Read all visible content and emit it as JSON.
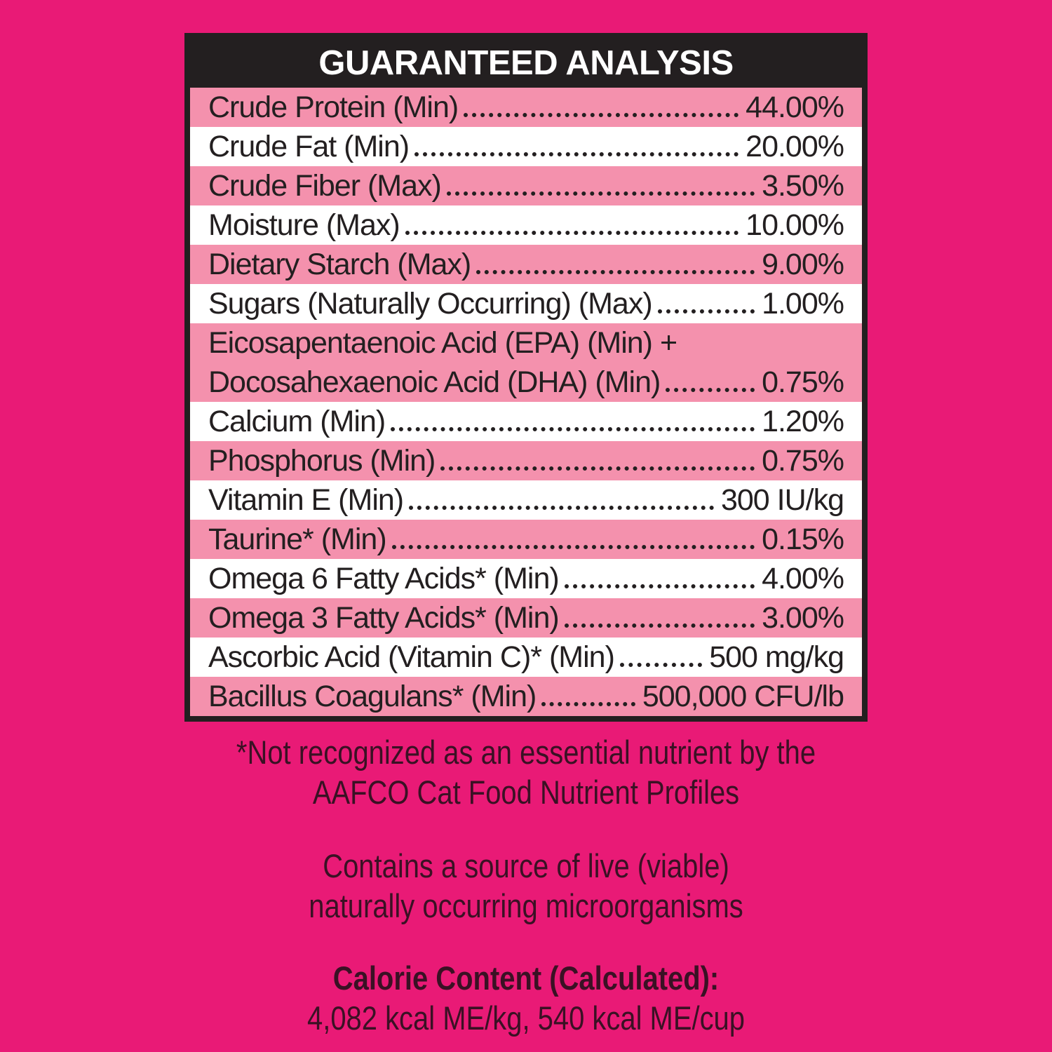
{
  "colors": {
    "background": "#E91A76",
    "table_ink": "#231F20",
    "row_pink": "#F491AD",
    "row_white": "#FFFFFF",
    "header_text": "#FFFFFF",
    "note_text": "#3A1124"
  },
  "table": {
    "title": "GUARANTEED ANALYSIS",
    "rows": [
      {
        "lines": [
          {
            "label": "Crude Protein (Min)",
            "value": "44.00%"
          }
        ]
      },
      {
        "lines": [
          {
            "label": "Crude Fat (Min)",
            "value": "20.00%"
          }
        ]
      },
      {
        "lines": [
          {
            "label": "Crude Fiber (Max)",
            "value": "3.50%"
          }
        ]
      },
      {
        "lines": [
          {
            "label": "Moisture (Max)",
            "value": "10.00%"
          }
        ]
      },
      {
        "lines": [
          {
            "label": "Dietary Starch (Max)",
            "value": "9.00%"
          }
        ]
      },
      {
        "lines": [
          {
            "label": "Sugars (Naturally Occurring) (Max)",
            "value": "1.00%"
          }
        ]
      },
      {
        "lines": [
          {
            "label": "Eicosapentaenoic Acid (EPA) (Min) +"
          },
          {
            "label": "Docosahexaenoic Acid (DHA) (Min)",
            "value": "0.75%"
          }
        ]
      },
      {
        "lines": [
          {
            "label": "Calcium (Min)",
            "value": "1.20%"
          }
        ]
      },
      {
        "lines": [
          {
            "label": "Phosphorus (Min)",
            "value": "0.75%"
          }
        ]
      },
      {
        "lines": [
          {
            "label": "Vitamin E (Min)",
            "value": "300 IU/kg"
          }
        ]
      },
      {
        "lines": [
          {
            "label": "Taurine* (Min)",
            "value": "0.15%"
          }
        ]
      },
      {
        "lines": [
          {
            "label": "Omega 6 Fatty Acids* (Min)",
            "value": "4.00%"
          }
        ]
      },
      {
        "lines": [
          {
            "label": "Omega 3 Fatty Acids* (Min)",
            "value": "3.00%"
          }
        ]
      },
      {
        "lines": [
          {
            "label": "Ascorbic Acid (Vitamin C)* (Min)",
            "value": "500 mg/kg"
          }
        ]
      },
      {
        "lines": [
          {
            "label": "Bacillus Coagulans* (Min)",
            "value": "500,000 CFU/lb"
          }
        ]
      }
    ]
  },
  "footnote": {
    "line1": "*Not recognized as an essential nutrient by the",
    "line2": "AAFCO Cat Food Nutrient Profiles"
  },
  "micro_note": {
    "line1": "Contains a source of live (viable)",
    "line2": "naturally occurring microorganisms"
  },
  "calorie": {
    "heading": "Calorie Content (Calculated):",
    "values": "4,082 kcal ME/kg, 540 kcal ME/cup"
  }
}
